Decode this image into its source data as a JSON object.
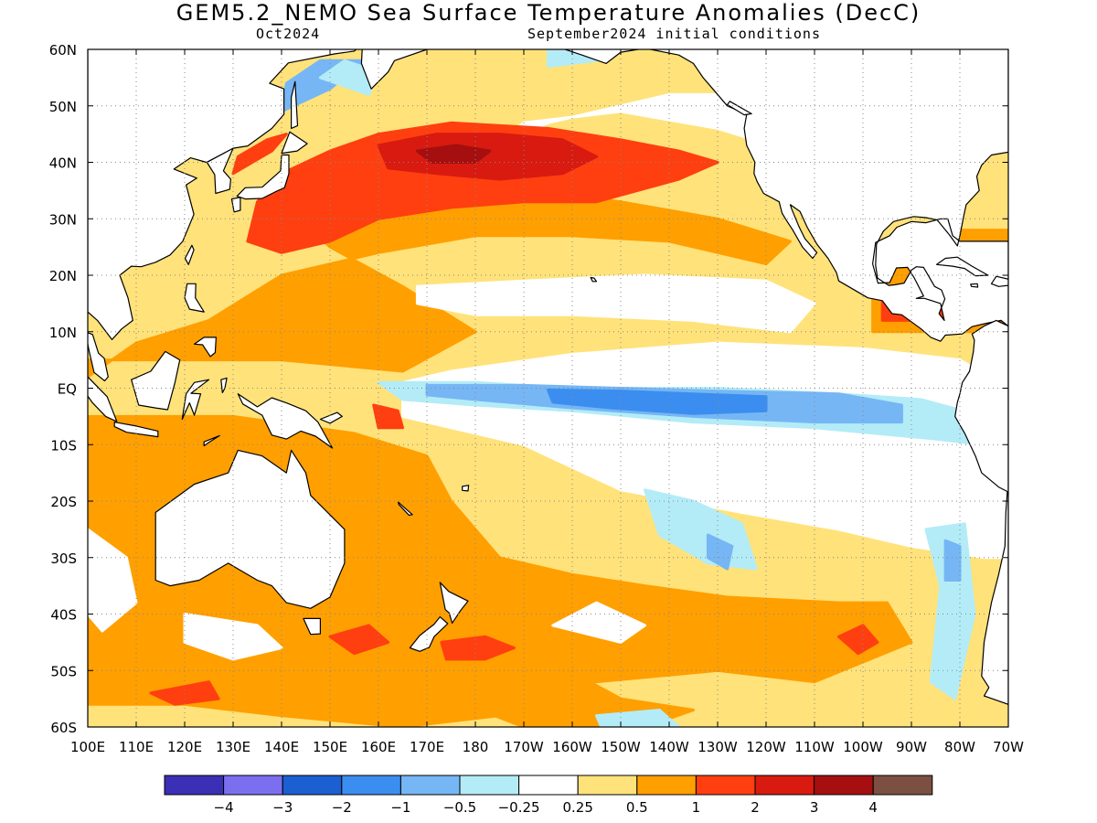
{
  "title": "GEM5.2_NEMO Sea Surface Temperature Anomalies (DecC)",
  "subtitle_left": "Oct2024",
  "subtitle_right": "September2024 initial conditions",
  "chart_data": {
    "type": "heatmap",
    "title": "GEM5.2_NEMO Sea Surface Temperature Anomalies (DecC)",
    "variable": "Sea Surface Temperature Anomalies",
    "units": "DecC",
    "valid_month": "Oct2024",
    "initial_conditions": "September2024 initial conditions",
    "lon_range": [
      100,
      290
    ],
    "lat_range": [
      -60,
      60
    ],
    "x_ticks": [
      "100E",
      "110E",
      "120E",
      "130E",
      "140E",
      "150E",
      "160E",
      "170E",
      "180",
      "170W",
      "160W",
      "150W",
      "140W",
      "130W",
      "120W",
      "110W",
      "100W",
      "90W",
      "80W",
      "70W"
    ],
    "y_ticks": [
      "60N",
      "50N",
      "40N",
      "30N",
      "20N",
      "10N",
      "EQ",
      "10S",
      "20S",
      "30S",
      "40S",
      "50S",
      "60S"
    ],
    "grid": true,
    "legend_position": "bottom",
    "colorbar": {
      "labels": [
        "−4",
        "−3",
        "−2",
        "−1",
        "−0.5",
        "−0.25",
        "0.25",
        "0.5",
        "1",
        "2",
        "3",
        "4"
      ],
      "colors": [
        "#3b2fb5",
        "#7b6ff0",
        "#1c5fd1",
        "#3b8ef0",
        "#76b6f5",
        "#b3ecf7",
        "#ffffff",
        "#ffe27a",
        "#ff9f00",
        "#ff3f10",
        "#d81a10",
        "#a50f0f",
        "#7b4f42"
      ]
    },
    "features": [
      {
        "name": "Warm North Pacific blob",
        "lon": [
          155,
          230
        ],
        "lat": [
          25,
          48
        ],
        "anomaly": "2 to 3"
      },
      {
        "name": "Cool equatorial Pacific tongue",
        "lon": [
          165,
          270
        ],
        "lat": [
          -8,
          3
        ],
        "anomaly": "-0.5 to -1"
      },
      {
        "name": "Warm western Pacific",
        "lon": [
          115,
          160
        ],
        "lat": [
          -30,
          20
        ],
        "anomaly": "0.5 to 1"
      },
      {
        "name": "Warm Gulf of Mexico / Caribbean",
        "lon": [
          262,
          290
        ],
        "lat": [
          10,
          25
        ],
        "anomaly": "1 to 2"
      },
      {
        "name": "Warm Tasman Sea",
        "lon": [
          150,
          190
        ],
        "lat": [
          -50,
          -40
        ],
        "anomaly": "1 to 2"
      },
      {
        "name": "Cool Sea of Okhotsk",
        "lon": [
          140,
          160
        ],
        "lat": [
          48,
          58
        ],
        "anomaly": "-0.5 to -1"
      },
      {
        "name": "Cool southeast Pacific",
        "lon": [
          215,
          235
        ],
        "lat": [
          -32,
          -18
        ],
        "anomaly": "-0.25 to -0.5"
      }
    ]
  }
}
